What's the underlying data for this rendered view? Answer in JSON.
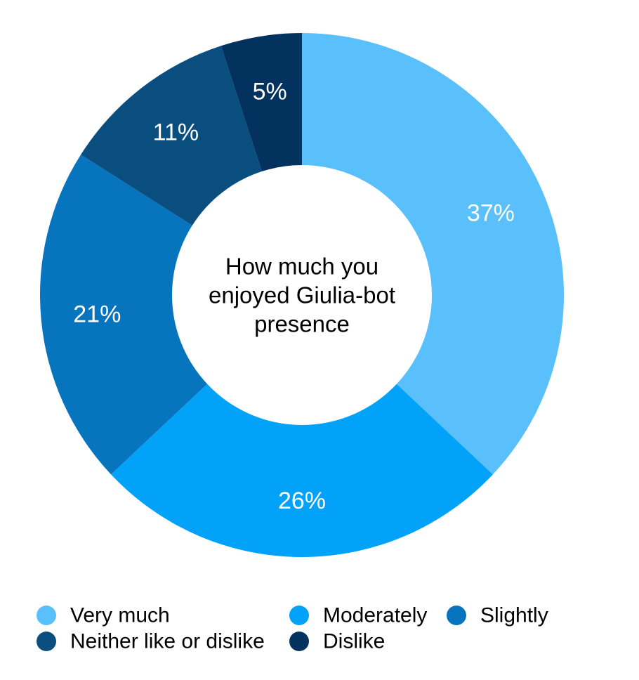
{
  "chart_data": {
    "type": "pie",
    "donut": true,
    "center_title_lines": [
      "How much you",
      "enjoyed Giulia-bot",
      "presence"
    ],
    "slices": [
      {
        "label": "Very much",
        "value": 37,
        "display": "37%",
        "color": "#5AC0FB"
      },
      {
        "label": "Moderately",
        "value": 26,
        "display": "26%",
        "color": "#03A2F9"
      },
      {
        "label": "Slightly",
        "value": 21,
        "display": "21%",
        "color": "#0775BD"
      },
      {
        "label": "Neither like or dislike",
        "value": 11,
        "display": "11%",
        "color": "#0A4D7F"
      },
      {
        "label": "Dislike",
        "value": 5,
        "display": "5%",
        "color": "#03325E"
      }
    ],
    "start_angle_deg": 0,
    "direction": "clockwise",
    "legend_position": "bottom"
  }
}
